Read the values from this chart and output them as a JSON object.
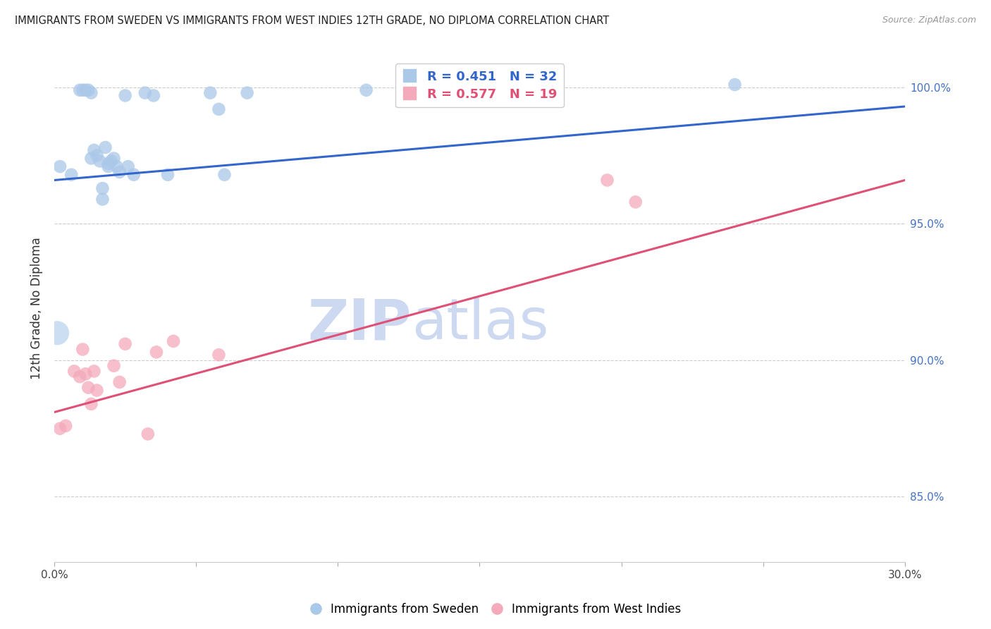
{
  "title": "IMMIGRANTS FROM SWEDEN VS IMMIGRANTS FROM WEST INDIES 12TH GRADE, NO DIPLOMA CORRELATION CHART",
  "source": "Source: ZipAtlas.com",
  "ylabel": "12th Grade, No Diploma",
  "legend_sweden": "Immigrants from Sweden",
  "legend_westindies": "Immigrants from West Indies",
  "R_sweden": 0.451,
  "N_sweden": 32,
  "R_westindies": 0.577,
  "N_westindies": 19,
  "xlim": [
    0.0,
    0.3
  ],
  "ylim": [
    0.826,
    1.012
  ],
  "yticks": [
    0.85,
    0.9,
    0.95,
    1.0
  ],
  "xticks": [
    0.0,
    0.05,
    0.1,
    0.15,
    0.2,
    0.25,
    0.3
  ],
  "xtick_labels_show": [
    "0.0%",
    "",
    "",
    "",
    "",
    "",
    "30.0%"
  ],
  "ytick_labels": [
    "85.0%",
    "90.0%",
    "95.0%",
    "100.0%"
  ],
  "color_sweden": "#aac8e8",
  "color_westindies": "#f4aaba",
  "line_color_sweden": "#3366cc",
  "line_color_westindies": "#e05075",
  "watermark_zip": "ZIP",
  "watermark_atlas": "atlas",
  "watermark_color": "#cdd9f0",
  "sweden_x": [
    0.002,
    0.006,
    0.009,
    0.01,
    0.011,
    0.012,
    0.013,
    0.013,
    0.014,
    0.015,
    0.016,
    0.017,
    0.017,
    0.018,
    0.019,
    0.019,
    0.02,
    0.021,
    0.022,
    0.023,
    0.025,
    0.026,
    0.028,
    0.032,
    0.035,
    0.04,
    0.055,
    0.058,
    0.06,
    0.068,
    0.11,
    0.24
  ],
  "sweden_y": [
    0.971,
    0.968,
    0.999,
    0.999,
    0.999,
    0.999,
    0.974,
    0.998,
    0.977,
    0.975,
    0.973,
    0.963,
    0.959,
    0.978,
    0.972,
    0.971,
    0.973,
    0.974,
    0.971,
    0.969,
    0.997,
    0.971,
    0.968,
    0.998,
    0.997,
    0.968,
    0.998,
    0.992,
    0.968,
    0.998,
    0.999,
    1.001
  ],
  "westindies_x": [
    0.002,
    0.004,
    0.007,
    0.009,
    0.01,
    0.011,
    0.012,
    0.013,
    0.014,
    0.015,
    0.021,
    0.023,
    0.025,
    0.033,
    0.036,
    0.042,
    0.058,
    0.195,
    0.205
  ],
  "westindies_y": [
    0.875,
    0.876,
    0.896,
    0.894,
    0.904,
    0.895,
    0.89,
    0.884,
    0.896,
    0.889,
    0.898,
    0.892,
    0.906,
    0.873,
    0.903,
    0.907,
    0.902,
    0.966,
    0.958
  ],
  "trend_sweden_x0": 0.0,
  "trend_sweden_y0": 0.966,
  "trend_sweden_x1": 0.3,
  "trend_sweden_y1": 0.993,
  "trend_wi_x0": 0.0,
  "trend_wi_y0": 0.881,
  "trend_wi_x1": 0.3,
  "trend_wi_y1": 0.966
}
